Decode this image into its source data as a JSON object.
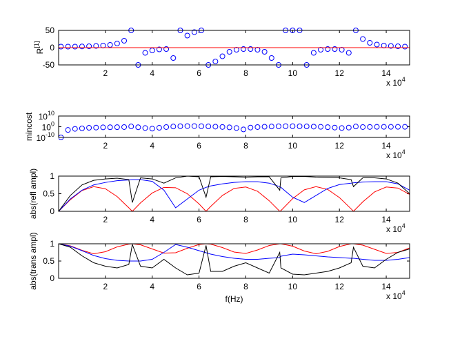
{
  "chart_data": [
    {
      "type": "scatter",
      "ylabel": "R",
      "ylabel_superscript": "[1]",
      "x_multiplier": "x 10",
      "x_multiplier_exponent": "4",
      "xlim": [
        0,
        15
      ],
      "xticks": [
        2,
        4,
        6,
        8,
        10,
        12,
        14
      ],
      "ylim": [
        -50,
        50
      ],
      "yticks": [
        -50,
        0,
        50
      ],
      "series": [
        {
          "style": "markers",
          "color": "#0000ff",
          "x": [
            0.1,
            0.4,
            0.7,
            1.0,
            1.3,
            1.6,
            1.9,
            2.2,
            2.5,
            2.8,
            3.1,
            3.4,
            3.7,
            4.0,
            4.3,
            4.6,
            4.9,
            5.2,
            5.5,
            5.8,
            6.1,
            6.4,
            6.7,
            7.0,
            7.3,
            7.6,
            7.9,
            8.2,
            8.5,
            8.8,
            9.1,
            9.4,
            9.7,
            10.0,
            10.3,
            10.6,
            10.9,
            11.2,
            11.5,
            11.8,
            12.1,
            12.4,
            12.7,
            13.0,
            13.3,
            13.6,
            13.9,
            14.2,
            14.5,
            14.8
          ],
          "values": [
            3,
            3,
            3,
            3.5,
            4,
            5,
            6,
            8,
            12,
            20,
            50,
            -50,
            -15,
            -8,
            -5,
            -4,
            -30,
            50,
            35,
            45,
            50,
            -50,
            -40,
            -25,
            -12,
            -6,
            -4,
            -4,
            -6,
            -12,
            -30,
            -50,
            50,
            50,
            50,
            -50,
            -15,
            -6,
            -4,
            -4,
            -6,
            -15,
            50,
            25,
            14,
            9,
            6,
            5,
            4,
            3
          ]
        },
        {
          "style": "line",
          "color": "#ff0000",
          "x": [
            0,
            15
          ],
          "values": [
            0,
            0
          ]
        }
      ]
    },
    {
      "type": "scatter",
      "ylabel": "mincost",
      "x_multiplier": "x 10",
      "x_multiplier_exponent": "4",
      "yscale": "log",
      "xlim": [
        0,
        15
      ],
      "xticks": [
        2,
        4,
        6,
        8,
        10,
        12,
        14
      ],
      "ylim": [
        1e-10,
        10000000000.0
      ],
      "yticks": [
        {
          "value": 1e-10,
          "label": "10",
          "exponent": "-10"
        },
        {
          "value": 1,
          "label": "10",
          "exponent": "0"
        },
        {
          "value": 10000000000.0,
          "label": "10",
          "exponent": "10"
        }
      ],
      "series": [
        {
          "style": "markers",
          "color": "#0000ff",
          "x": [
            0.1,
            0.4,
            0.7,
            1.0,
            1.3,
            1.6,
            1.9,
            2.2,
            2.5,
            2.8,
            3.1,
            3.4,
            3.7,
            4.0,
            4.3,
            4.6,
            4.9,
            5.2,
            5.5,
            5.8,
            6.1,
            6.4,
            6.7,
            7.0,
            7.3,
            7.6,
            7.9,
            8.2,
            8.5,
            8.8,
            9.1,
            9.4,
            9.7,
            10.0,
            10.3,
            10.6,
            10.9,
            11.2,
            11.5,
            11.8,
            12.1,
            12.4,
            12.7,
            13.0,
            13.3,
            13.6,
            13.9,
            14.2,
            14.5,
            14.8
          ],
          "values": [
            1e-10,
            0.001,
            0.01,
            0.03,
            0.1,
            0.16,
            0.25,
            0.3,
            0.4,
            0.5,
            2,
            0.3,
            0.06,
            0.016,
            0.1,
            0.5,
            1.6,
            3,
            4,
            4,
            3,
            2,
            1.3,
            0.6,
            0.25,
            0.06,
            0.003,
            0.16,
            0.5,
            1,
            1.6,
            2.5,
            3,
            3,
            2.5,
            2,
            1.3,
            0.8,
            0.4,
            0.16,
            0.06,
            0.16,
            1.6,
            0.5,
            0.6,
            0.8,
            0.8,
            0.8,
            0.8,
            0.8
          ]
        }
      ]
    },
    {
      "type": "line",
      "ylabel": "abs(refl ampl)",
      "x_multiplier": "x 10",
      "x_multiplier_exponent": "4",
      "xlim": [
        0,
        15
      ],
      "xticks": [
        2,
        4,
        6,
        8,
        10,
        12,
        14
      ],
      "ylim": [
        0,
        1
      ],
      "yticks": [
        0,
        0.5,
        1
      ],
      "x": [
        0,
        0.5,
        1,
        1.5,
        2,
        2.5,
        3,
        3.15,
        3.5,
        4,
        4.5,
        5,
        5.5,
        6,
        6.3,
        6.5,
        7,
        7.5,
        8,
        8.5,
        9,
        9.45,
        9.5,
        10,
        10.5,
        11,
        11.5,
        12,
        12.5,
        12.6,
        13,
        13.5,
        14,
        14.5,
        15
      ],
      "series": [
        {
          "color": "#ff0000",
          "values": [
            0,
            0.33,
            0.59,
            0.7,
            0.64,
            0.42,
            0.1,
            0,
            0.24,
            0.52,
            0.68,
            0.67,
            0.5,
            0.21,
            0,
            0.14,
            0.45,
            0.65,
            0.69,
            0.57,
            0.3,
            0,
            0.02,
            0.36,
            0.61,
            0.7,
            0.62,
            0.39,
            0.07,
            0,
            0.27,
            0.55,
            0.69,
            0.66,
            0.48
          ]
        },
        {
          "color": "#0000ff",
          "values": [
            0,
            0.35,
            0.6,
            0.75,
            0.82,
            0.87,
            0.89,
            0.9,
            0.9,
            0.85,
            0.6,
            0.1,
            0.35,
            0.6,
            0.68,
            0.72,
            0.78,
            0.82,
            0.84,
            0.84,
            0.8,
            0.7,
            0.68,
            0.4,
            0.25,
            0.45,
            0.65,
            0.76,
            0.8,
            0.81,
            0.83,
            0.84,
            0.84,
            0.78,
            0.6
          ]
        },
        {
          "color": "#000000",
          "values": [
            0,
            0.45,
            0.75,
            0.88,
            0.92,
            0.94,
            0.9,
            0.25,
            0.95,
            0.92,
            0.8,
            0.95,
            1.0,
            0.98,
            0.4,
            0.98,
            0.99,
            0.98,
            0.97,
            0.98,
            0.98,
            0.6,
            0.95,
            0.99,
            0.99,
            0.97,
            0.96,
            0.95,
            0.9,
            0.7,
            0.95,
            0.95,
            0.92,
            0.8,
            0.5
          ]
        }
      ]
    },
    {
      "type": "line",
      "ylabel": "abs(trans ampl)",
      "xlabel": "f(Hz)",
      "x_multiplier": "x 10",
      "x_multiplier_exponent": "4",
      "xlim": [
        0,
        15
      ],
      "xticks": [
        2,
        4,
        6,
        8,
        10,
        12,
        14
      ],
      "ylim": [
        0,
        1
      ],
      "yticks": [
        0,
        0.5,
        1
      ],
      "x": [
        0,
        0.5,
        1,
        1.5,
        2,
        2.5,
        3,
        3.15,
        3.5,
        4,
        4.5,
        5,
        5.5,
        6,
        6.3,
        6.5,
        7,
        7.5,
        8,
        8.5,
        9,
        9.45,
        9.5,
        10,
        10.5,
        11,
        11.5,
        12,
        12.5,
        12.6,
        13,
        13.5,
        14,
        14.5,
        15
      ],
      "series": [
        {
          "color": "#ff0000",
          "values": [
            1,
            0.94,
            0.81,
            0.71,
            0.77,
            0.91,
            0.99,
            1,
            0.97,
            0.85,
            0.73,
            0.74,
            0.87,
            0.98,
            1,
            0.99,
            0.89,
            0.76,
            0.72,
            0.82,
            0.95,
            1,
            1.0,
            0.93,
            0.79,
            0.71,
            0.78,
            0.92,
            1.0,
            1,
            0.96,
            0.84,
            0.72,
            0.75,
            0.88
          ]
        },
        {
          "color": "#0000ff",
          "values": [
            1,
            0.93,
            0.8,
            0.66,
            0.57,
            0.52,
            0.5,
            0.5,
            0.5,
            0.55,
            0.75,
            0.98,
            0.9,
            0.8,
            0.74,
            0.7,
            0.63,
            0.58,
            0.55,
            0.55,
            0.58,
            0.6,
            0.64,
            0.7,
            0.68,
            0.65,
            0.62,
            0.6,
            0.58,
            0.58,
            0.55,
            0.52,
            0.52,
            0.55,
            0.6
          ]
        },
        {
          "color": "#000000",
          "values": [
            1,
            0.9,
            0.65,
            0.45,
            0.35,
            0.3,
            0.4,
            0.98,
            0.35,
            0.3,
            0.55,
            0.3,
            0.1,
            0.15,
            0.95,
            0.2,
            0.2,
            0.35,
            0.45,
            0.3,
            0.15,
            0.75,
            0.3,
            0.12,
            0.1,
            0.15,
            0.2,
            0.3,
            0.45,
            0.9,
            0.35,
            0.3,
            0.55,
            0.75,
            0.85
          ]
        }
      ]
    }
  ]
}
